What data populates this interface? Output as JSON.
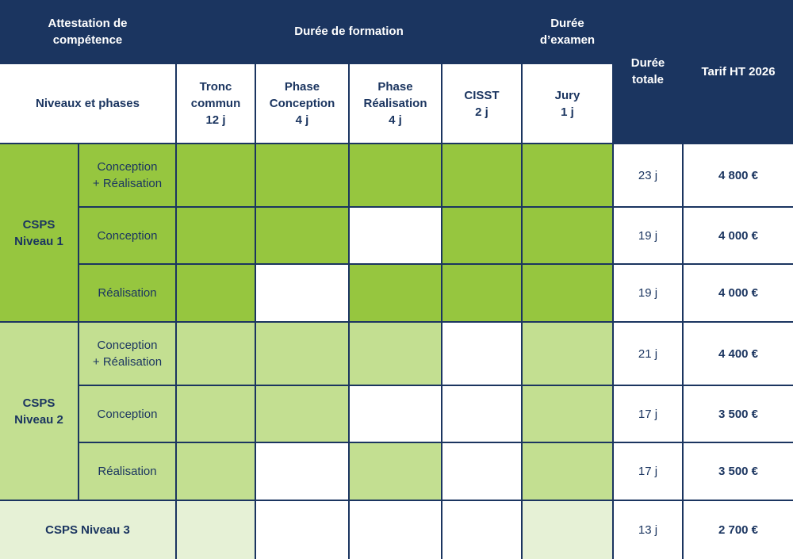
{
  "colors": {
    "navy": "#1b3560",
    "level1_green": "#96c63f",
    "level2_green": "#c3df91",
    "level3_green": "#e6f1d6",
    "white": "#ffffff"
  },
  "header": {
    "attestation": "Attestation de\ncompétence",
    "duree_formation": "Durée de formation",
    "duree_examen": "Durée\nd’examen",
    "duree_totale": "Durée\ntotale",
    "tarif": "Tarif HT 2026",
    "niveaux_phases": "Niveaux et phases",
    "tronc_commun": "Tronc\ncommun\n12 j",
    "phase_conception": "Phase\nConception\n4 j",
    "phase_realisation": "Phase\nRéalisation\n4 j",
    "cisst": "CISST\n2 j",
    "jury": "Jury\n1 j"
  },
  "levels": [
    {
      "label": "CSPS\nNiveau 1"
    },
    {
      "label": "CSPS\nNiveau 2"
    },
    {
      "label": "CSPS Niveau 3"
    }
  ],
  "rows": [
    {
      "level": 0,
      "phase": "Conception\n+ Réalisation",
      "cells": [
        true,
        true,
        true,
        true,
        true
      ],
      "total": "23 j",
      "price": "4 800 €"
    },
    {
      "level": 0,
      "phase": "Conception",
      "cells": [
        true,
        true,
        false,
        true,
        true
      ],
      "total": "19 j",
      "price": "4 000 €"
    },
    {
      "level": 0,
      "phase": "Réalisation",
      "cells": [
        true,
        false,
        true,
        true,
        true
      ],
      "total": "19 j",
      "price": "4 000 €"
    },
    {
      "level": 1,
      "phase": "Conception\n+ Réalisation",
      "cells": [
        true,
        true,
        true,
        false,
        true
      ],
      "total": "21 j",
      "price": "4 400 €"
    },
    {
      "level": 1,
      "phase": "Conception",
      "cells": [
        true,
        true,
        false,
        false,
        true
      ],
      "total": "17 j",
      "price": "3 500 €"
    },
    {
      "level": 1,
      "phase": "Réalisation",
      "cells": [
        true,
        false,
        true,
        false,
        true
      ],
      "total": "17 j",
      "price": "3 500 €"
    },
    {
      "level": 2,
      "phase": "",
      "cells": [
        true,
        false,
        false,
        false,
        true
      ],
      "total": "13 j",
      "price": "2 700 €"
    }
  ]
}
